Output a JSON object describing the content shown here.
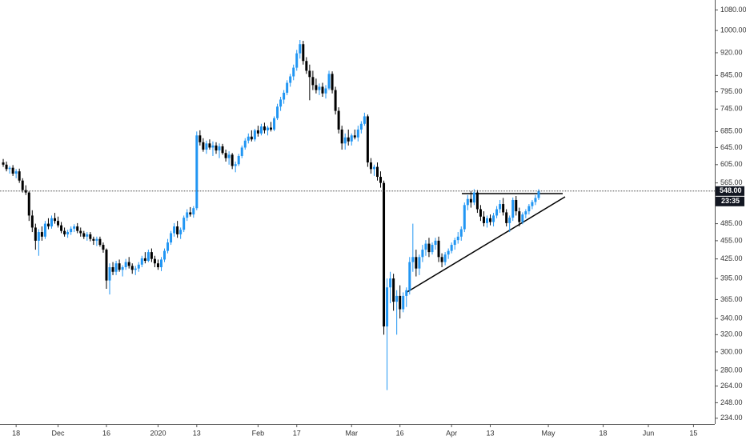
{
  "chart_data": {
    "type": "candlestick",
    "log_scale": true,
    "up_color": "#2196f3",
    "down_color": "#000000",
    "ylim": [
      229,
      1121
    ],
    "yticks": [
      {
        "value": 1080,
        "label": "1080.00"
      },
      {
        "value": 1000,
        "label": "1000.00"
      },
      {
        "value": 920,
        "label": "920.00"
      },
      {
        "value": 845,
        "label": "845.00"
      },
      {
        "value": 795,
        "label": "795.00"
      },
      {
        "value": 745,
        "label": "745.00"
      },
      {
        "value": 685,
        "label": "685.00"
      },
      {
        "value": 645,
        "label": "645.00"
      },
      {
        "value": 605,
        "label": "605.00"
      },
      {
        "value": 565,
        "label": "565.00"
      },
      {
        "value": 485,
        "label": "485.00"
      },
      {
        "value": 455,
        "label": "455.00"
      },
      {
        "value": 425,
        "label": "425.00"
      },
      {
        "value": 395,
        "label": "395.00"
      },
      {
        "value": 365,
        "label": "365.00"
      },
      {
        "value": 340,
        "label": "340.00"
      },
      {
        "value": 320,
        "label": "320.00"
      },
      {
        "value": 300,
        "label": "300.00"
      },
      {
        "value": 280,
        "label": "280.00"
      },
      {
        "value": 264,
        "label": "264.00"
      },
      {
        "value": 248,
        "label": "248.00"
      },
      {
        "value": 234,
        "label": "234.00"
      }
    ],
    "xlim": [
      -1,
      220.6
    ],
    "xticks": [
      {
        "value": 4,
        "label": "18"
      },
      {
        "value": 17,
        "label": "Dec"
      },
      {
        "value": 32,
        "label": "16"
      },
      {
        "value": 48,
        "label": "2020"
      },
      {
        "value": 60,
        "label": "13"
      },
      {
        "value": 79,
        "label": "Feb"
      },
      {
        "value": 91,
        "label": "17"
      },
      {
        "value": 108,
        "label": "Mar"
      },
      {
        "value": 123,
        "label": "16"
      },
      {
        "value": 139,
        "label": "Apr"
      },
      {
        "value": 151,
        "label": "13"
      },
      {
        "value": 169,
        "label": "May"
      },
      {
        "value": 186,
        "label": "18"
      },
      {
        "value": 200,
        "label": "Jun"
      },
      {
        "value": 214,
        "label": "15"
      }
    ],
    "last_price": {
      "value": 548,
      "label": "548.00"
    },
    "countdown": "23:35",
    "candles": [
      [
        610,
        618,
        600,
        605
      ],
      [
        605,
        612,
        590,
        595
      ],
      [
        595,
        602,
        585,
        598
      ],
      [
        598,
        604,
        580,
        585
      ],
      [
        585,
        595,
        575,
        590
      ],
      [
        590,
        596,
        565,
        570
      ],
      [
        570,
        575,
        545,
        550
      ],
      [
        550,
        560,
        540,
        545
      ],
      [
        545,
        548,
        490,
        500
      ],
      [
        500,
        510,
        470,
        478
      ],
      [
        478,
        485,
        440,
        455
      ],
      [
        455,
        475,
        430,
        470
      ],
      [
        470,
        480,
        455,
        462
      ],
      [
        462,
        490,
        458,
        485
      ],
      [
        485,
        495,
        475,
        480
      ],
      [
        480,
        500,
        476,
        495
      ],
      [
        495,
        505,
        485,
        490
      ],
      [
        490,
        498,
        478,
        482
      ],
      [
        482,
        488,
        468,
        472
      ],
      [
        472,
        478,
        462,
        466
      ],
      [
        466,
        474,
        460,
        470
      ],
      [
        470,
        480,
        465,
        476
      ],
      [
        476,
        484,
        470,
        480
      ],
      [
        480,
        486,
        468,
        472
      ],
      [
        472,
        478,
        462,
        468
      ],
      [
        468,
        472,
        458,
        462
      ],
      [
        462,
        470,
        455,
        466
      ],
      [
        466,
        470,
        454,
        458
      ],
      [
        458,
        462,
        448,
        455
      ],
      [
        455,
        462,
        446,
        458
      ],
      [
        458,
        462,
        445,
        448
      ],
      [
        448,
        452,
        435,
        440
      ],
      [
        440,
        442,
        380,
        392
      ],
      [
        392,
        418,
        372,
        412
      ],
      [
        412,
        420,
        400,
        405
      ],
      [
        405,
        422,
        400,
        418
      ],
      [
        418,
        424,
        405,
        408
      ],
      [
        408,
        415,
        398,
        412
      ],
      [
        412,
        425,
        408,
        420
      ],
      [
        420,
        428,
        410,
        414
      ],
      [
        414,
        418,
        402,
        408
      ],
      [
        408,
        414,
        400,
        410
      ],
      [
        410,
        420,
        405,
        416
      ],
      [
        416,
        430,
        412,
        426
      ],
      [
        426,
        436,
        418,
        422
      ],
      [
        422,
        440,
        420,
        436
      ],
      [
        436,
        442,
        420,
        425
      ],
      [
        425,
        430,
        412,
        418
      ],
      [
        418,
        424,
        408,
        412
      ],
      [
        412,
        428,
        406,
        424
      ],
      [
        424,
        442,
        420,
        438
      ],
      [
        438,
        458,
        434,
        452
      ],
      [
        452,
        472,
        448,
        468
      ],
      [
        468,
        486,
        462,
        480
      ],
      [
        480,
        490,
        460,
        466
      ],
      [
        466,
        478,
        458,
        474
      ],
      [
        474,
        500,
        470,
        496
      ],
      [
        496,
        512,
        490,
        506
      ],
      [
        506,
        516,
        498,
        502
      ],
      [
        502,
        518,
        496,
        514
      ],
      [
        514,
        685,
        510,
        675
      ],
      [
        675,
        688,
        650,
        658
      ],
      [
        658,
        668,
        635,
        640
      ],
      [
        640,
        662,
        630,
        655
      ],
      [
        655,
        665,
        640,
        645
      ],
      [
        645,
        660,
        625,
        650
      ],
      [
        650,
        658,
        630,
        638
      ],
      [
        638,
        655,
        620,
        648
      ],
      [
        648,
        654,
        628,
        632
      ],
      [
        632,
        640,
        612,
        620
      ],
      [
        620,
        636,
        605,
        628
      ],
      [
        628,
        632,
        595,
        602
      ],
      [
        602,
        612,
        588,
        606
      ],
      [
        606,
        630,
        602,
        625
      ],
      [
        625,
        650,
        620,
        645
      ],
      [
        645,
        668,
        640,
        662
      ],
      [
        662,
        680,
        655,
        672
      ],
      [
        672,
        688,
        660,
        665
      ],
      [
        665,
        692,
        660,
        688
      ],
      [
        688,
        700,
        672,
        680
      ],
      [
        680,
        705,
        675,
        698
      ],
      [
        698,
        708,
        680,
        688
      ],
      [
        688,
        700,
        675,
        695
      ],
      [
        695,
        710,
        685,
        690
      ],
      [
        690,
        725,
        686,
        720
      ],
      [
        720,
        760,
        715,
        752
      ],
      [
        752,
        780,
        740,
        772
      ],
      [
        772,
        800,
        760,
        792
      ],
      [
        792,
        830,
        785,
        822
      ],
      [
        822,
        850,
        810,
        842
      ],
      [
        842,
        880,
        830,
        870
      ],
      [
        870,
        930,
        860,
        918
      ],
      [
        918,
        965,
        900,
        950
      ],
      [
        950,
        962,
        880,
        892
      ],
      [
        892,
        905,
        850,
        860
      ],
      [
        860,
        880,
        770,
        840
      ],
      [
        840,
        860,
        800,
        815
      ],
      [
        815,
        835,
        790,
        800
      ],
      [
        800,
        820,
        785,
        810
      ],
      [
        810,
        822,
        780,
        790
      ],
      [
        790,
        815,
        775,
        805
      ],
      [
        805,
        860,
        800,
        850
      ],
      [
        850,
        858,
        790,
        800
      ],
      [
        800,
        810,
        730,
        740
      ],
      [
        740,
        750,
        680,
        690
      ],
      [
        690,
        700,
        640,
        655
      ],
      [
        655,
        680,
        640,
        670
      ],
      [
        670,
        690,
        650,
        660
      ],
      [
        660,
        680,
        650,
        675
      ],
      [
        675,
        690,
        665,
        670
      ],
      [
        670,
        700,
        660,
        690
      ],
      [
        690,
        712,
        680,
        705
      ],
      [
        705,
        735,
        700,
        725
      ],
      [
        725,
        730,
        600,
        610
      ],
      [
        610,
        620,
        585,
        595
      ],
      [
        595,
        605,
        580,
        600
      ],
      [
        600,
        610,
        570,
        578
      ],
      [
        578,
        590,
        555,
        565
      ],
      [
        565,
        570,
        320,
        330
      ],
      [
        330,
        395,
        260,
        382
      ],
      [
        382,
        405,
        360,
        395
      ],
      [
        395,
        402,
        350,
        362
      ],
      [
        362,
        378,
        320,
        370
      ],
      [
        370,
        385,
        340,
        352
      ],
      [
        352,
        375,
        348,
        370
      ],
      [
        370,
        382,
        355,
        378
      ],
      [
        378,
        428,
        372,
        420
      ],
      [
        420,
        485,
        405,
        428
      ],
      [
        428,
        440,
        398,
        410
      ],
      [
        410,
        432,
        400,
        428
      ],
      [
        428,
        448,
        420,
        440
      ],
      [
        440,
        456,
        430,
        450
      ],
      [
        450,
        460,
        428,
        436
      ],
      [
        436,
        452,
        432,
        448
      ],
      [
        448,
        460,
        440,
        455
      ],
      [
        455,
        462,
        420,
        428
      ],
      [
        428,
        434,
        412,
        420
      ],
      [
        420,
        436,
        415,
        432
      ],
      [
        432,
        442,
        425,
        438
      ],
      [
        438,
        452,
        434,
        448
      ],
      [
        448,
        460,
        440,
        456
      ],
      [
        456,
        470,
        450,
        462
      ],
      [
        462,
        480,
        455,
        475
      ],
      [
        475,
        525,
        470,
        520
      ],
      [
        520,
        540,
        510,
        532
      ],
      [
        532,
        548,
        515,
        525
      ],
      [
        525,
        552,
        520,
        545
      ],
      [
        545,
        550,
        505,
        512
      ],
      [
        512,
        520,
        490,
        498
      ],
      [
        498,
        508,
        480,
        486
      ],
      [
        486,
        500,
        478,
        495
      ],
      [
        495,
        502,
        482,
        488
      ],
      [
        488,
        505,
        480,
        500
      ],
      [
        500,
        518,
        495,
        512
      ],
      [
        512,
        530,
        505,
        522
      ],
      [
        522,
        534,
        500,
        506
      ],
      [
        506,
        512,
        480,
        486
      ],
      [
        486,
        500,
        470,
        496
      ],
      [
        496,
        535,
        490,
        530
      ],
      [
        530,
        538,
        500,
        508
      ],
      [
        508,
        515,
        480,
        488
      ],
      [
        488,
        506,
        484,
        502
      ],
      [
        502,
        512,
        495,
        508
      ],
      [
        508,
        522,
        502,
        518
      ],
      [
        518,
        530,
        512,
        526
      ],
      [
        526,
        540,
        520,
        534
      ],
      [
        534,
        552,
        530,
        548
      ]
    ]
  }
}
